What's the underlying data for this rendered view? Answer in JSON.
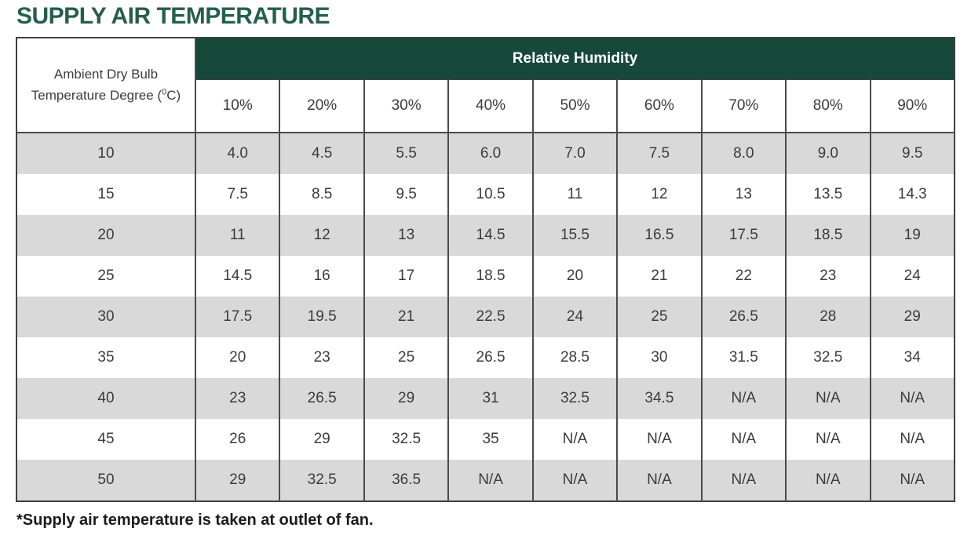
{
  "page": {
    "title": "SUPPLY AIR TEMPERATURE",
    "footnote": "*Supply air temperature is taken at outlet of fan."
  },
  "colors": {
    "header_green": "#17493A",
    "title_green": "#265E4D",
    "stripe_gray": "#D9D9D9",
    "border_dark": "#4A4A4A",
    "cell_text": "#3B3B3B"
  },
  "table": {
    "row_header": {
      "line1": "Ambient Dry Bulb",
      "line2_pre": "Temperature Degree (",
      "degree_sup": "0",
      "line2_post": "C)"
    },
    "col_group_header": "Relative Humidity",
    "columns": [
      "10%",
      "20%",
      "30%",
      "40%",
      "50%",
      "60%",
      "70%",
      "80%",
      "90%"
    ],
    "rows": [
      {
        "label": "10",
        "values": [
          "4.0",
          "4.5",
          "5.5",
          "6.0",
          "7.0",
          "7.5",
          "8.0",
          "9.0",
          "9.5"
        ]
      },
      {
        "label": "15",
        "values": [
          "7.5",
          "8.5",
          "9.5",
          "10.5",
          "11",
          "12",
          "13",
          "13.5",
          "14.3"
        ]
      },
      {
        "label": "20",
        "values": [
          "11",
          "12",
          "13",
          "14.5",
          "15.5",
          "16.5",
          "17.5",
          "18.5",
          "19"
        ]
      },
      {
        "label": "25",
        "values": [
          "14.5",
          "16",
          "17",
          "18.5",
          "20",
          "21",
          "22",
          "23",
          "24"
        ]
      },
      {
        "label": "30",
        "values": [
          "17.5",
          "19.5",
          "21",
          "22.5",
          "24",
          "25",
          "26.5",
          "28",
          "29"
        ]
      },
      {
        "label": "35",
        "values": [
          "20",
          "23",
          "25",
          "26.5",
          "28.5",
          "30",
          "31.5",
          "32.5",
          "34"
        ]
      },
      {
        "label": "40",
        "values": [
          "23",
          "26.5",
          "29",
          "31",
          "32.5",
          "34.5",
          "N/A",
          "N/A",
          "N/A"
        ]
      },
      {
        "label": "45",
        "values": [
          "26",
          "29",
          "32.5",
          "35",
          "N/A",
          "N/A",
          "N/A",
          "N/A",
          "N/A"
        ]
      },
      {
        "label": "50",
        "values": [
          "29",
          "32.5",
          "36.5",
          "N/A",
          "N/A",
          "N/A",
          "N/A",
          "N/A",
          "N/A"
        ]
      }
    ]
  }
}
